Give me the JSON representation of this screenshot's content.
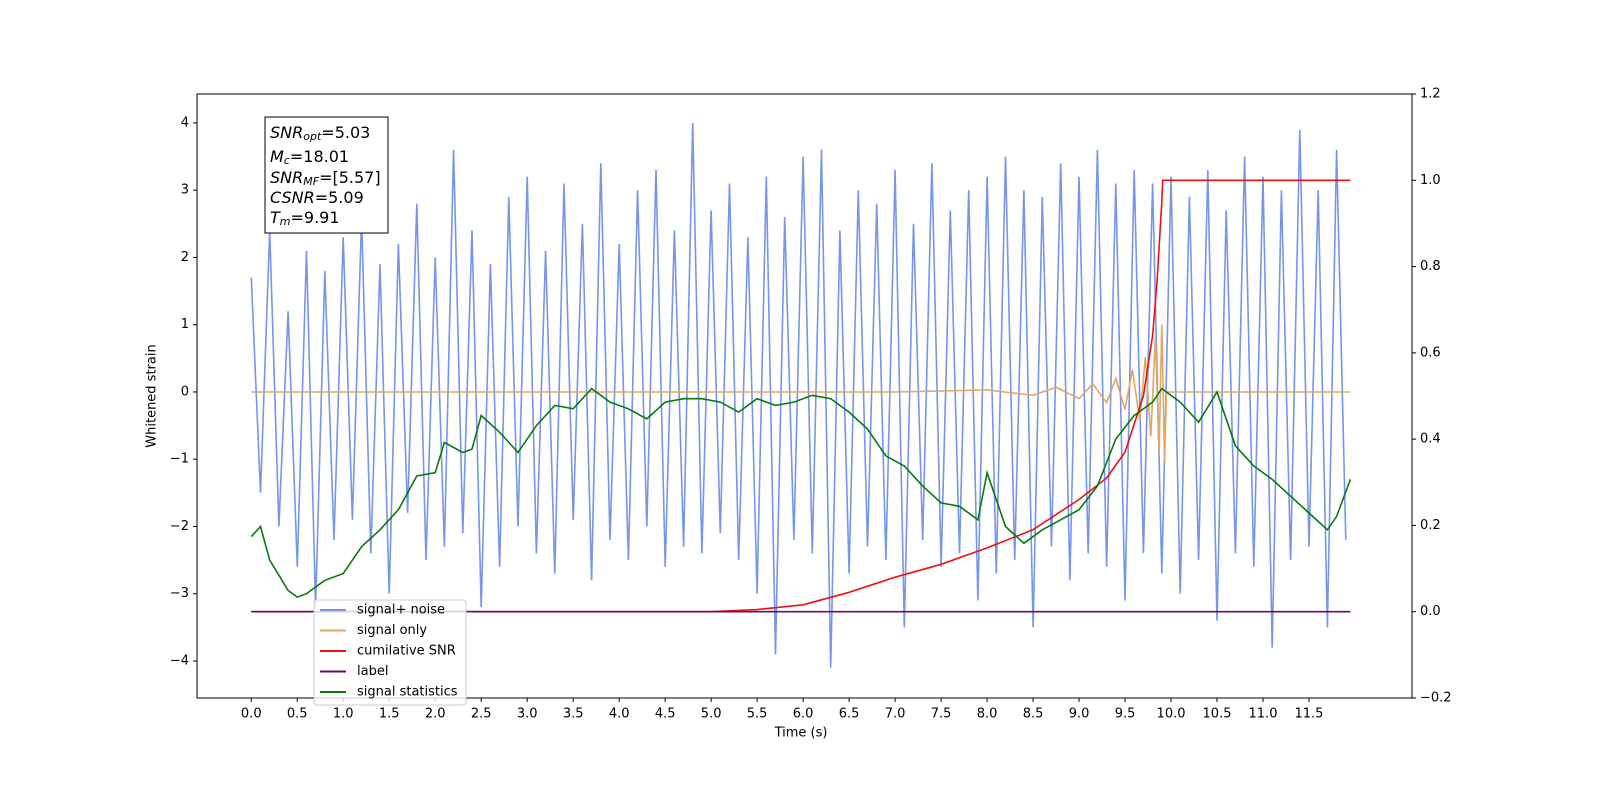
{
  "chart_data": {
    "type": "line",
    "xlabel": "Time (s)",
    "ylabel": "Whitened strain",
    "xlim": [
      -0.59,
      12.62
    ],
    "ylim": [
      -4.55,
      4.43
    ],
    "y2lim": [
      -0.2,
      1.2
    ],
    "xticks": [
      {
        "value": 0,
        "label": "0.0"
      },
      0.5,
      {
        "value": 1,
        "label": "1.0"
      },
      1.5,
      {
        "value": 2,
        "label": "2.0"
      },
      2.5,
      {
        "value": 3,
        "label": "3.0"
      },
      3.5,
      {
        "value": 4,
        "label": "4.0"
      },
      4.5,
      {
        "value": 5,
        "label": "5.0"
      },
      5.5,
      {
        "value": 6,
        "label": "6.0"
      },
      6.5,
      {
        "value": 7,
        "label": "7.0"
      },
      7.5,
      {
        "value": 8,
        "label": "8.0"
      },
      8.5,
      {
        "value": 9,
        "label": "9.0"
      },
      9.5,
      {
        "value": 10,
        "label": "10.0"
      },
      10.5,
      {
        "value": 11,
        "label": "11.0"
      },
      11.5
    ],
    "yticks": [
      {
        "value": -4,
        "label": "−4"
      },
      {
        "value": -3,
        "label": "−3"
      },
      {
        "value": -2,
        "label": "−2"
      },
      {
        "value": -1,
        "label": "−1"
      },
      0,
      1,
      2,
      3,
      4
    ],
    "y2ticks": [
      {
        "value": -0.2,
        "label": "−0.2"
      },
      {
        "value": 0,
        "label": "0.0"
      },
      0.2,
      0.4,
      0.6,
      0.8,
      {
        "value": 1,
        "label": "1.0"
      },
      1.2
    ],
    "legend": "lower left",
    "annotation_lines": [
      {
        "main": "SNR",
        "sub": "opt",
        "value": "=5.03"
      },
      {
        "main": "M",
        "sub": "c",
        "value": "=18.01"
      },
      {
        "main": "SNR",
        "sub": "MF",
        "value": "=[5.57]"
      },
      {
        "main": "CSNR",
        "sub": "",
        "value": "=5.09"
      },
      {
        "main": "T",
        "sub": "m",
        "value": "=9.91"
      }
    ],
    "series": [
      {
        "name": "signal+ noise",
        "color": "#7895e8",
        "x": [
          0,
          0.1,
          0.2,
          0.3,
          0.4,
          0.5,
          0.6,
          0.7,
          0.8,
          0.9,
          1,
          1.1,
          1.2,
          1.3,
          1.4,
          1.5,
          1.6,
          1.7,
          1.8,
          1.9,
          2,
          2.1,
          2.2,
          2.3,
          2.4,
          2.5,
          2.6,
          2.7,
          2.8,
          2.9,
          3,
          3.1,
          3.2,
          3.3,
          3.4,
          3.5,
          3.6,
          3.7,
          3.8,
          3.9,
          4,
          4.1,
          4.2,
          4.3,
          4.4,
          4.5,
          4.6,
          4.7,
          4.8,
          4.9,
          5,
          5.1,
          5.2,
          5.3,
          5.4,
          5.5,
          5.6,
          5.7,
          5.8,
          5.9,
          6,
          6.1,
          6.2,
          6.3,
          6.4,
          6.5,
          6.6,
          6.7,
          6.8,
          6.9,
          7,
          7.1,
          7.2,
          7.3,
          7.4,
          7.5,
          7.6,
          7.7,
          7.8,
          7.9,
          8,
          8.1,
          8.2,
          8.3,
          8.4,
          8.5,
          8.6,
          8.7,
          8.8,
          8.9,
          9,
          9.1,
          9.2,
          9.3,
          9.4,
          9.5,
          9.6,
          9.7,
          9.8,
          9.9,
          10,
          10.1,
          10.2,
          10.3,
          10.4,
          10.5,
          10.6,
          10.7,
          10.8,
          10.9,
          11,
          11.1,
          11.2,
          11.3,
          11.4,
          11.5,
          11.6,
          11.7,
          11.8,
          11.9
        ],
        "values": [
          1.7,
          -1.5,
          2.4,
          -2.0,
          1.2,
          -2.6,
          2.1,
          -3.2,
          1.8,
          -2.2,
          2.3,
          -1.9,
          2.6,
          -2.4,
          1.9,
          -3.0,
          2.2,
          -1.8,
          2.8,
          -2.5,
          2.0,
          -2.3,
          3.6,
          -2.1,
          2.4,
          -3.2,
          1.9,
          -2.6,
          2.9,
          -2.0,
          3.2,
          -2.4,
          2.1,
          -2.7,
          3.1,
          -1.9,
          2.5,
          -2.8,
          3.4,
          -2.2,
          2.2,
          -2.5,
          3.0,
          -2.0,
          3.3,
          -2.6,
          2.4,
          -2.3,
          4.0,
          -2.4,
          2.7,
          -2.1,
          3.1,
          -2.5,
          2.3,
          -3.0,
          3.2,
          -3.9,
          2.6,
          -2.2,
          3.5,
          -2.4,
          3.6,
          -4.1,
          2.4,
          -2.7,
          3.0,
          -2.3,
          2.8,
          -2.5,
          3.3,
          -3.5,
          2.5,
          -2.2,
          3.4,
          -2.6,
          2.7,
          -2.4,
          3.0,
          -3.1,
          3.2,
          -2.7,
          3.5,
          -2.5,
          3.0,
          -3.5,
          2.9,
          -2.3,
          3.4,
          -2.8,
          3.2,
          -2.4,
          3.6,
          -2.6,
          3.1,
          -3.1,
          3.3,
          -2.4,
          3.1,
          -2.7,
          3.2,
          -3.0,
          2.9,
          -2.5,
          3.3,
          -3.4,
          2.7,
          -2.4,
          3.5,
          -2.6,
          3.2,
          -3.8,
          3.0,
          -2.5,
          3.9,
          -2.3,
          3.0,
          -3.5,
          3.6,
          -2.2
        ]
      },
      {
        "name": "signal only",
        "color": "#e0a862",
        "x": [
          0,
          7,
          8,
          8.5,
          8.75,
          9,
          9.15,
          9.3,
          9.4,
          9.5,
          9.58,
          9.66,
          9.72,
          9.78,
          9.83,
          9.87,
          9.9,
          9.93,
          9.95,
          11.95
        ],
        "values": [
          0,
          0,
          0.03,
          -0.05,
          0.07,
          -0.1,
          0.12,
          -0.16,
          0.2,
          -0.26,
          0.33,
          -0.42,
          0.52,
          -0.66,
          0.82,
          -0.9,
          1.0,
          -1.05,
          0,
          0
        ]
      },
      {
        "name": "cumilative SNR",
        "color": "#ee1111",
        "axis": "y2",
        "x": [
          0,
          5,
          5.5,
          6,
          6.5,
          7,
          7.5,
          8,
          8.5,
          9,
          9.3,
          9.5,
          9.7,
          9.8,
          9.85,
          9.9,
          9.91,
          11.95
        ],
        "values": [
          0,
          0,
          0.005,
          0.016,
          0.045,
          0.08,
          0.11,
          0.148,
          0.19,
          0.26,
          0.31,
          0.37,
          0.5,
          0.64,
          0.77,
          0.95,
          1.0,
          1.0
        ]
      },
      {
        "name": "label",
        "color": "#6a0a6a",
        "axis": "y2",
        "x": [
          0,
          11.95
        ],
        "values": [
          0,
          0
        ]
      },
      {
        "name": "signal statistics",
        "color": "#0a7a0a",
        "x": [
          0,
          0.1,
          0.2,
          0.4,
          0.5,
          0.6,
          0.8,
          1,
          1.2,
          1.4,
          1.6,
          1.8,
          2,
          2.1,
          2.3,
          2.4,
          2.5,
          2.7,
          2.9,
          3.1,
          3.3,
          3.5,
          3.7,
          3.9,
          4.1,
          4.3,
          4.5,
          4.7,
          4.9,
          5.1,
          5.3,
          5.5,
          5.7,
          5.9,
          6.1,
          6.3,
          6.5,
          6.7,
          6.9,
          7.1,
          7.3,
          7.5,
          7.7,
          7.9,
          8,
          8.2,
          8.4,
          8.6,
          8.8,
          9,
          9.2,
          9.4,
          9.6,
          9.8,
          9.9,
          10.1,
          10.3,
          10.5,
          10.7,
          10.9,
          11.1,
          11.3,
          11.5,
          11.7,
          11.8,
          11.95
        ],
        "values": [
          -2.15,
          -2.0,
          -2.5,
          -2.95,
          -3.05,
          -3.0,
          -2.8,
          -2.7,
          -2.3,
          -2.05,
          -1.75,
          -1.25,
          -1.2,
          -0.75,
          -0.9,
          -0.85,
          -0.35,
          -0.6,
          -0.9,
          -0.5,
          -0.2,
          -0.25,
          0.05,
          -0.15,
          -0.25,
          -0.4,
          -0.15,
          -0.1,
          -0.1,
          -0.15,
          -0.3,
          -0.1,
          -0.2,
          -0.15,
          -0.05,
          -0.1,
          -0.3,
          -0.55,
          -0.95,
          -1.1,
          -1.4,
          -1.65,
          -1.7,
          -1.9,
          -1.2,
          -2.0,
          -2.25,
          -2.05,
          -1.9,
          -1.75,
          -1.4,
          -0.7,
          -0.35,
          -0.15,
          0.05,
          -0.15,
          -0.45,
          0.0,
          -0.8,
          -1.1,
          -1.3,
          -1.55,
          -1.8,
          -2.05,
          -1.85,
          -1.3
        ]
      }
    ]
  }
}
